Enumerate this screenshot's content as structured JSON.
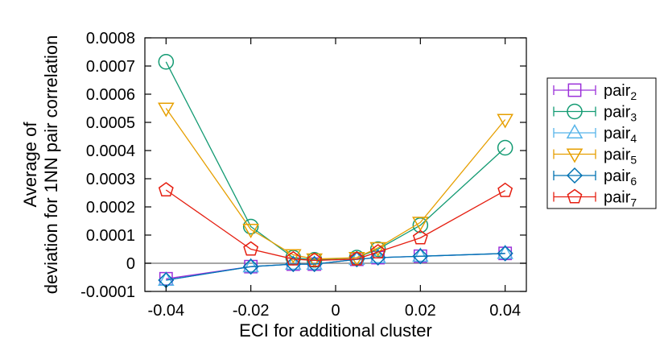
{
  "chart_data": {
    "type": "line",
    "xlabel": "ECI for additional cluster",
    "ylabel_lines": [
      "Average of",
      "deviation for 1NN pair correlation"
    ],
    "xlim": [
      -0.045,
      0.045
    ],
    "ylim": [
      -0.0001,
      0.0008
    ],
    "xticks": [
      -0.04,
      -0.02,
      0,
      0.02,
      0.04
    ],
    "xtick_labels": [
      "-0.04",
      "-0.02",
      "0",
      "0.02",
      "0.04"
    ],
    "yticks": [
      -0.0001,
      0,
      0.0001,
      0.0002,
      0.0003,
      0.0004,
      0.0005,
      0.0006,
      0.0007,
      0.0008
    ],
    "ytick_labels": [
      "-0.0001",
      "0",
      "0.0001",
      "0.0002",
      "0.0003",
      "0.0004",
      "0.0005",
      "0.0006",
      "0.0007",
      "0.0008"
    ],
    "zero_line": true,
    "legend_position": "right",
    "x": [
      -0.04,
      -0.02,
      -0.01,
      -0.005,
      0.005,
      0.01,
      0.02,
      0.04
    ],
    "series": [
      {
        "name": "pair",
        "sub": "2",
        "marker": "square",
        "color": "#9b30d9",
        "values": [
          -5.5e-05,
          -1.2e-05,
          -3e-06,
          -3e-06,
          1.4e-05,
          2e-05,
          2.5e-05,
          3.5e-05
        ]
      },
      {
        "name": "pair",
        "sub": "3",
        "marker": "circle",
        "color": "#129a72",
        "values": [
          0.000715,
          0.00013,
          2e-05,
          1.2e-05,
          2e-05,
          5e-05,
          0.000135,
          0.00041
        ]
      },
      {
        "name": "pair",
        "sub": "4",
        "marker": "triangle-up",
        "color": "#56b4e9",
        "values": [
          -6e-05,
          -1.2e-05,
          -3e-06,
          -3e-06,
          1.4e-05,
          2e-05,
          2.5e-05,
          3.5e-05
        ]
      },
      {
        "name": "pair",
        "sub": "5",
        "marker": "triangle-down",
        "color": "#e69f00",
        "values": [
          0.00055,
          0.00012,
          3e-05,
          1.5e-05,
          2e-05,
          5.5e-05,
          0.000145,
          0.00051
        ]
      },
      {
        "name": "pair",
        "sub": "6",
        "marker": "diamond",
        "color": "#0072b2",
        "values": [
          -6e-05,
          -1.2e-05,
          -3e-06,
          -3e-06,
          1.4e-05,
          2e-05,
          2.5e-05,
          3.5e-05
        ]
      },
      {
        "name": "pair",
        "sub": "7",
        "marker": "pentagon",
        "color": "#e51e10",
        "values": [
          0.00026,
          5e-05,
          1.5e-05,
          1e-05,
          1.5e-05,
          4e-05,
          9e-05,
          0.000258
        ]
      }
    ]
  }
}
